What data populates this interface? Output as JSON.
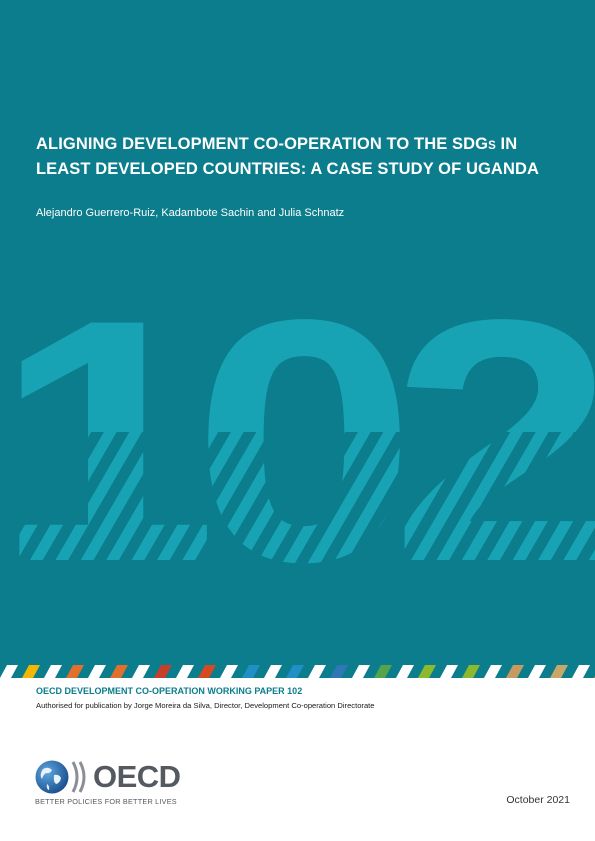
{
  "cover": {
    "title_part1": "ALIGNING DEVELOPMENT CO-OPERATION TO THE SDG",
    "title_sub": "S",
    "title_part2": " IN",
    "title_line2": "LEAST DEVELOPED COUNTRIES: A CASE STUDY OF UGANDA",
    "authors": "Alejandro Guerrero-Ruiz, Kadambote Sachin and Julia Schnatz",
    "big_number": "102"
  },
  "footer": {
    "series_title": "OECD DEVELOPMENT CO-OPERATION WORKING PAPER 102",
    "authorised": "Authorised for publication by Jorge Moreira da Silva, Director, Development Co-operation Directorate",
    "logo_word": "OECD",
    "logo_tagline": "BETTER POLICIES FOR BETTER LIVES",
    "date": "October 2021"
  },
  "colors": {
    "cover_teal": "#0b7d8c",
    "number_teal": "#18a3b5",
    "stripe_colors": [
      "#f2b705",
      "#e0702c",
      "#c63f2b",
      "#d64a21",
      "#1f8fc5",
      "#2f77b5",
      "#54a44b",
      "#8bba2e",
      "#c79a61",
      "#c8a86a"
    ]
  }
}
